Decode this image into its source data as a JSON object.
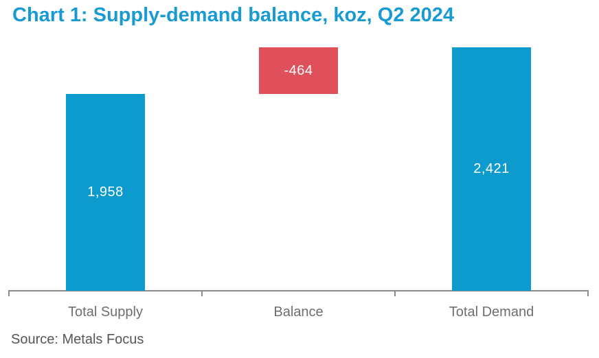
{
  "header": {
    "title": "Chart 1: Supply-demand balance, koz, Q2 2024"
  },
  "footer": {
    "source": "Source: Metals Focus"
  },
  "colors": {
    "title": "#189AD3",
    "bar_positive": "#0D9ACD",
    "bar_negative": "#E0505A",
    "value_label": "#FFFFFF",
    "axis": "#8A8A8A",
    "category_label": "#6E6E6E"
  },
  "chart_data": {
    "type": "bar",
    "subtype": "waterfall",
    "title": "Chart 1: Supply-demand balance, koz, Q2 2024",
    "unit": "koz",
    "period": "Q2 2024",
    "categories": [
      "Total Supply",
      "Balance",
      "Total Demand"
    ],
    "bars": [
      {
        "category": "Total Supply",
        "value": 1958,
        "label": "1,958",
        "from": 0,
        "to": 1958,
        "negative": false
      },
      {
        "category": "Balance",
        "value": -464,
        "label": "-464",
        "from": 1958,
        "to": 2422,
        "negative": true
      },
      {
        "category": "Total Demand",
        "value": 2421,
        "label": "2,421",
        "from": 0,
        "to": 2421,
        "negative": false
      }
    ],
    "ylim": [
      0,
      2422
    ],
    "grid": false,
    "legend": false,
    "value_labels_inside_bars": true
  }
}
